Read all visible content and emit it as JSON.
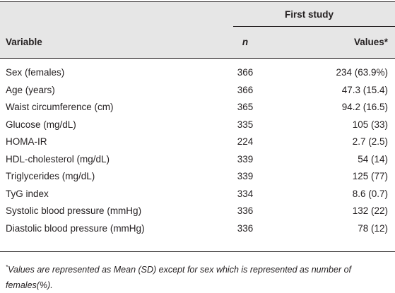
{
  "table": {
    "group_header": "First study",
    "columns": [
      "Variable",
      "n",
      "Values*"
    ],
    "rows": [
      [
        "Sex (females)",
        "366",
        "234 (63.9%)"
      ],
      [
        "Age (years)",
        "366",
        "47.3 (15.4)"
      ],
      [
        "Waist circumference (cm)",
        "365",
        "94.2 (16.5)"
      ],
      [
        "Glucose (mg/dL)",
        "335",
        "105 (33)"
      ],
      [
        "HOMA-IR",
        "224",
        "2.7 (2.5)"
      ],
      [
        "HDL-cholesterol (mg/dL)",
        "339",
        "54 (14)"
      ],
      [
        "Triglycerides (mg/dL)",
        "339",
        "125 (77)"
      ],
      [
        "TyG index",
        "334",
        "8.6 (0.7)"
      ],
      [
        "Systolic blood pressure (mmHg)",
        "336",
        "132 (22)"
      ],
      [
        "Diastolic blood pressure (mmHg)",
        "336",
        "78 (12)"
      ]
    ]
  },
  "footnote": {
    "marker": "*",
    "text": "Values are represented as Mean (SD) except for sex which is represented as number of females(%)."
  }
}
